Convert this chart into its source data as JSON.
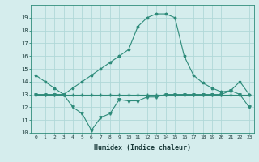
{
  "title": "",
  "xlabel": "Humidex (Indice chaleur)",
  "x": [
    0,
    1,
    2,
    3,
    4,
    5,
    6,
    7,
    8,
    9,
    10,
    11,
    12,
    13,
    14,
    15,
    16,
    17,
    18,
    19,
    20,
    21,
    22,
    23
  ],
  "line1": [
    14.5,
    14.0,
    13.5,
    13.0,
    13.5,
    14.0,
    14.5,
    15.0,
    15.5,
    16.0,
    16.5,
    18.3,
    19.0,
    19.3,
    19.3,
    19.0,
    16.0,
    14.5,
    13.9,
    13.5,
    13.2,
    13.3,
    14.0,
    13.0
  ],
  "line2": [
    13.0,
    13.0,
    13.0,
    13.0,
    12.0,
    11.5,
    10.2,
    11.2,
    11.5,
    12.6,
    12.5,
    12.5,
    12.8,
    12.8,
    13.0,
    13.0,
    13.0,
    13.0,
    13.0,
    13.0,
    13.0,
    13.3,
    13.0,
    12.0
  ],
  "line3": [
    13.0,
    13.0,
    13.0,
    13.0,
    13.0,
    13.0,
    13.0,
    13.0,
    13.0,
    13.0,
    13.0,
    13.0,
    13.0,
    13.0,
    13.0,
    13.0,
    13.0,
    13.0,
    13.0,
    13.0,
    13.0,
    13.0,
    13.0,
    13.0
  ],
  "line_color": "#2e8b7a",
  "bg_color": "#d5eded",
  "grid_color": "#b0d8d8",
  "ylim": [
    10,
    20
  ],
  "xlim": [
    -0.5,
    23.5
  ],
  "yticks": [
    10,
    11,
    12,
    13,
    14,
    15,
    16,
    17,
    18,
    19
  ],
  "xticks": [
    0,
    1,
    2,
    3,
    4,
    5,
    6,
    7,
    8,
    9,
    10,
    11,
    12,
    13,
    14,
    15,
    16,
    17,
    18,
    19,
    20,
    21,
    22,
    23
  ]
}
